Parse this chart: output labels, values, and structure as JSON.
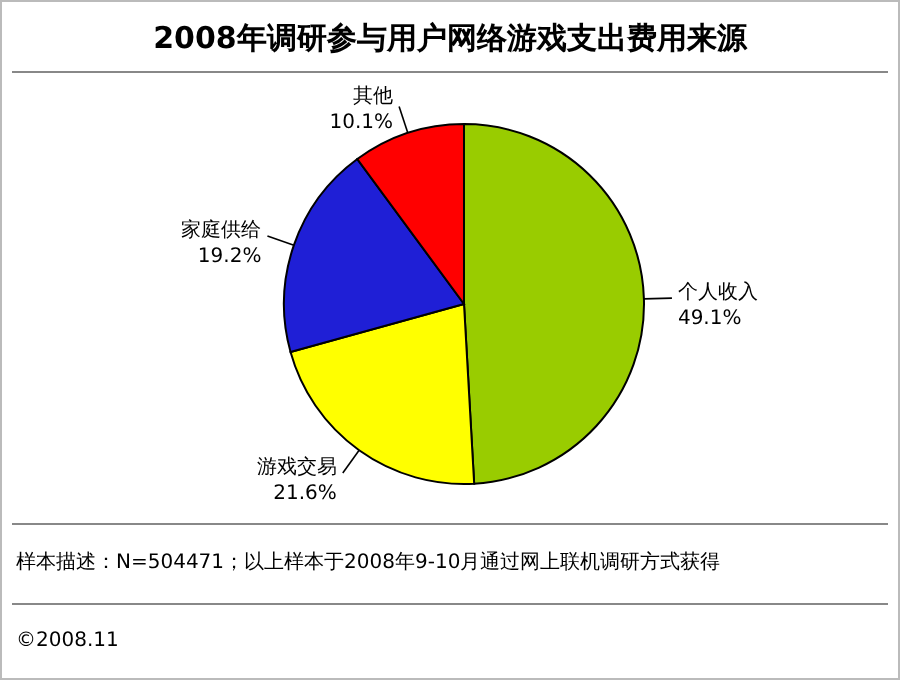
{
  "chart_data": {
    "type": "pie",
    "title": "2008年调研参与用户网络游戏支出费用来源",
    "categories": [
      "个人收入",
      "游戏交易",
      "家庭供给",
      "其他"
    ],
    "values": [
      49.1,
      21.6,
      19.2,
      10.1
    ],
    "value_labels": [
      "49.1%",
      "21.6%",
      "19.2%",
      "10.1%"
    ],
    "colors": [
      "#99cc00",
      "#ffff00",
      "#1f1fd6",
      "#ff0000"
    ],
    "annotations": [
      "样本描述：N=504471；以上样本于2008年9-10月通过网上联机调研方式获得",
      "©2008.11"
    ]
  }
}
